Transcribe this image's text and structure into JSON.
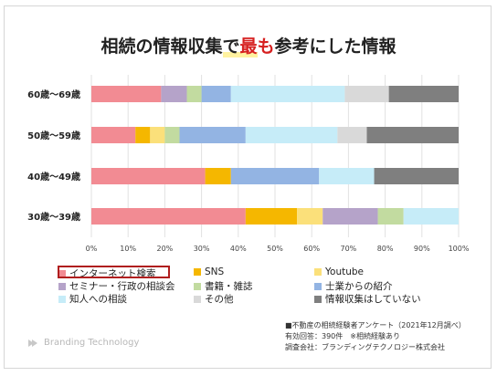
{
  "title": {
    "before": "相続の情報収集で",
    "highlight": "最も",
    "after": "参考にした情報"
  },
  "chart_data": {
    "type": "bar",
    "orientation": "horizontal",
    "stacked": true,
    "title": "相続の情報収集で最も参考にした情報",
    "categories": [
      "60歳～69歳",
      "50歳～59歳",
      "40歳～49歳",
      "30歳～39歳"
    ],
    "xlim": [
      0,
      100
    ],
    "xticks": [
      "0%",
      "10%",
      "20%",
      "30%",
      "40%",
      "50%",
      "60%",
      "70%",
      "80%",
      "90%",
      "100%"
    ],
    "grid": true,
    "legend_position": "bottom",
    "series": [
      {
        "name": "インターネット検索",
        "color": "#f28b93",
        "values": [
          19,
          12,
          31,
          42
        ]
      },
      {
        "name": "SNS",
        "color": "#f5b700",
        "values": [
          0,
          4,
          7,
          14
        ]
      },
      {
        "name": "Youtube",
        "color": "#fbe07a",
        "values": [
          0,
          4,
          0,
          7
        ]
      },
      {
        "name": "セミナー・行政の相談会",
        "color": "#b5a3c9",
        "values": [
          7,
          0,
          0,
          15
        ]
      },
      {
        "name": "書籍・雑誌",
        "color": "#c2dba0",
        "values": [
          4,
          4,
          0,
          7
        ]
      },
      {
        "name": "士業からの紹介",
        "color": "#93b4e3",
        "values": [
          8,
          18,
          24,
          0
        ]
      },
      {
        "name": "知人への相談",
        "color": "#c6ecf8",
        "values": [
          31,
          25,
          15,
          15
        ]
      },
      {
        "name": "その他",
        "color": "#d9d9d9",
        "values": [
          12,
          8,
          0,
          0
        ]
      },
      {
        "name": "情報収集はしていない",
        "color": "#7f7f7f",
        "values": [
          19,
          25,
          23,
          0
        ]
      }
    ]
  },
  "notes": [
    "■不動産の相続経験者アンケート（2021年12月調べ）",
    "有効回答：390件　※相続経験あり",
    "調査会社：ブランディングテクノロジー株式会社"
  ],
  "brand": "Branding Technology"
}
